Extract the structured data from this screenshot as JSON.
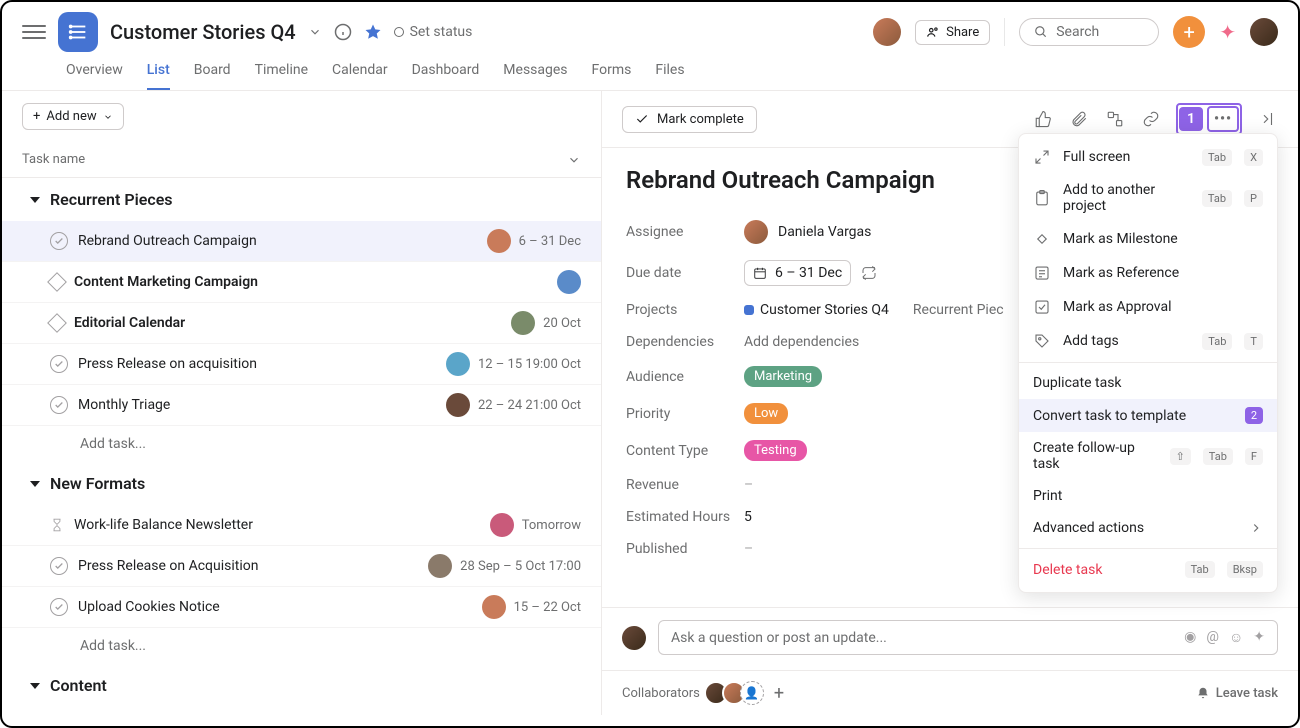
{
  "header": {
    "project_title": "Customer Stories Q4",
    "set_status": "Set status",
    "share_label": "Share",
    "search_placeholder": "Search"
  },
  "tabs": [
    "Overview",
    "List",
    "Board",
    "Timeline",
    "Calendar",
    "Dashboard",
    "Messages",
    "Forms",
    "Files"
  ],
  "active_tab": "List",
  "add_new_label": "Add new",
  "task_name_col": "Task name",
  "add_task_label": "Add task...",
  "sections": [
    {
      "title": "Recurrent Pieces",
      "tasks": [
        {
          "name": "Rebrand Outreach Campaign",
          "icon": "check",
          "meta": "6 – 31 Dec",
          "selected": true,
          "avatar": "#c97b5a"
        },
        {
          "name": "Content Marketing Campaign",
          "icon": "milestone",
          "bold": true,
          "avatar": "#5a8bc9"
        },
        {
          "name": "Editorial Calendar",
          "icon": "milestone",
          "bold": true,
          "meta": "20 Oct",
          "avatar": "#7a8b6a"
        },
        {
          "name": "Press Release on acquisition",
          "icon": "check",
          "meta": "12 – 15 19:00 Oct",
          "avatar": "#5aa5c9"
        },
        {
          "name": "Monthly Triage",
          "icon": "check",
          "meta": "22 – 24 21:00 Oct",
          "avatar": "#6a4a3a"
        }
      ]
    },
    {
      "title": "New Formats",
      "tasks": [
        {
          "name": "Work-life Balance Newsletter",
          "icon": "hourglass",
          "meta": "Tomorrow",
          "avatar": "#c95a7a"
        },
        {
          "name": "Press Release on Acquisition",
          "icon": "check",
          "meta": "28 Sep – 5 Oct 17:00",
          "avatar": "#8a7a6a"
        },
        {
          "name": "Upload Cookies Notice",
          "icon": "check",
          "meta": "15 – 22 Oct",
          "avatar": "#c97b5a"
        }
      ]
    },
    {
      "title": "Content",
      "tasks": []
    }
  ],
  "detail": {
    "mark_complete": "Mark complete",
    "title": "Rebrand Outreach Campaign",
    "badge1": "1",
    "fields": {
      "assignee_label": "Assignee",
      "assignee_value": "Daniela Vargas",
      "due_label": "Due date",
      "due_value": "6 – 31 Dec",
      "projects_label": "Projects",
      "project1": "Customer Stories Q4",
      "project2": "Recurrent Piec",
      "deps_label": "Dependencies",
      "deps_value": "Add dependencies",
      "audience_label": "Audience",
      "audience_value": "Marketing",
      "priority_label": "Priority",
      "priority_value": "Low",
      "content_label": "Content Type",
      "content_value": "Testing",
      "revenue_label": "Revenue",
      "revenue_value": "–",
      "hours_label": "Estimated Hours",
      "hours_value": "5",
      "published_label": "Published",
      "published_value": "–"
    },
    "comment_placeholder": "Ask a question or post an update...",
    "collaborators_label": "Collaborators",
    "leave_label": "Leave task"
  },
  "menu": {
    "full_screen": "Full screen",
    "add_project": "Add to another project",
    "milestone": "Mark as Milestone",
    "reference": "Mark as Reference",
    "approval": "Mark as Approval",
    "add_tags": "Add tags",
    "duplicate": "Duplicate task",
    "convert": "Convert task to template",
    "followup": "Create follow-up task",
    "print": "Print",
    "advanced": "Advanced actions",
    "delete": "Delete task",
    "badge2": "2",
    "kbd": {
      "tab": "Tab",
      "x": "X",
      "p": "P",
      "t": "T",
      "f": "F",
      "shift": "⇧",
      "bksp": "Bksp"
    }
  }
}
